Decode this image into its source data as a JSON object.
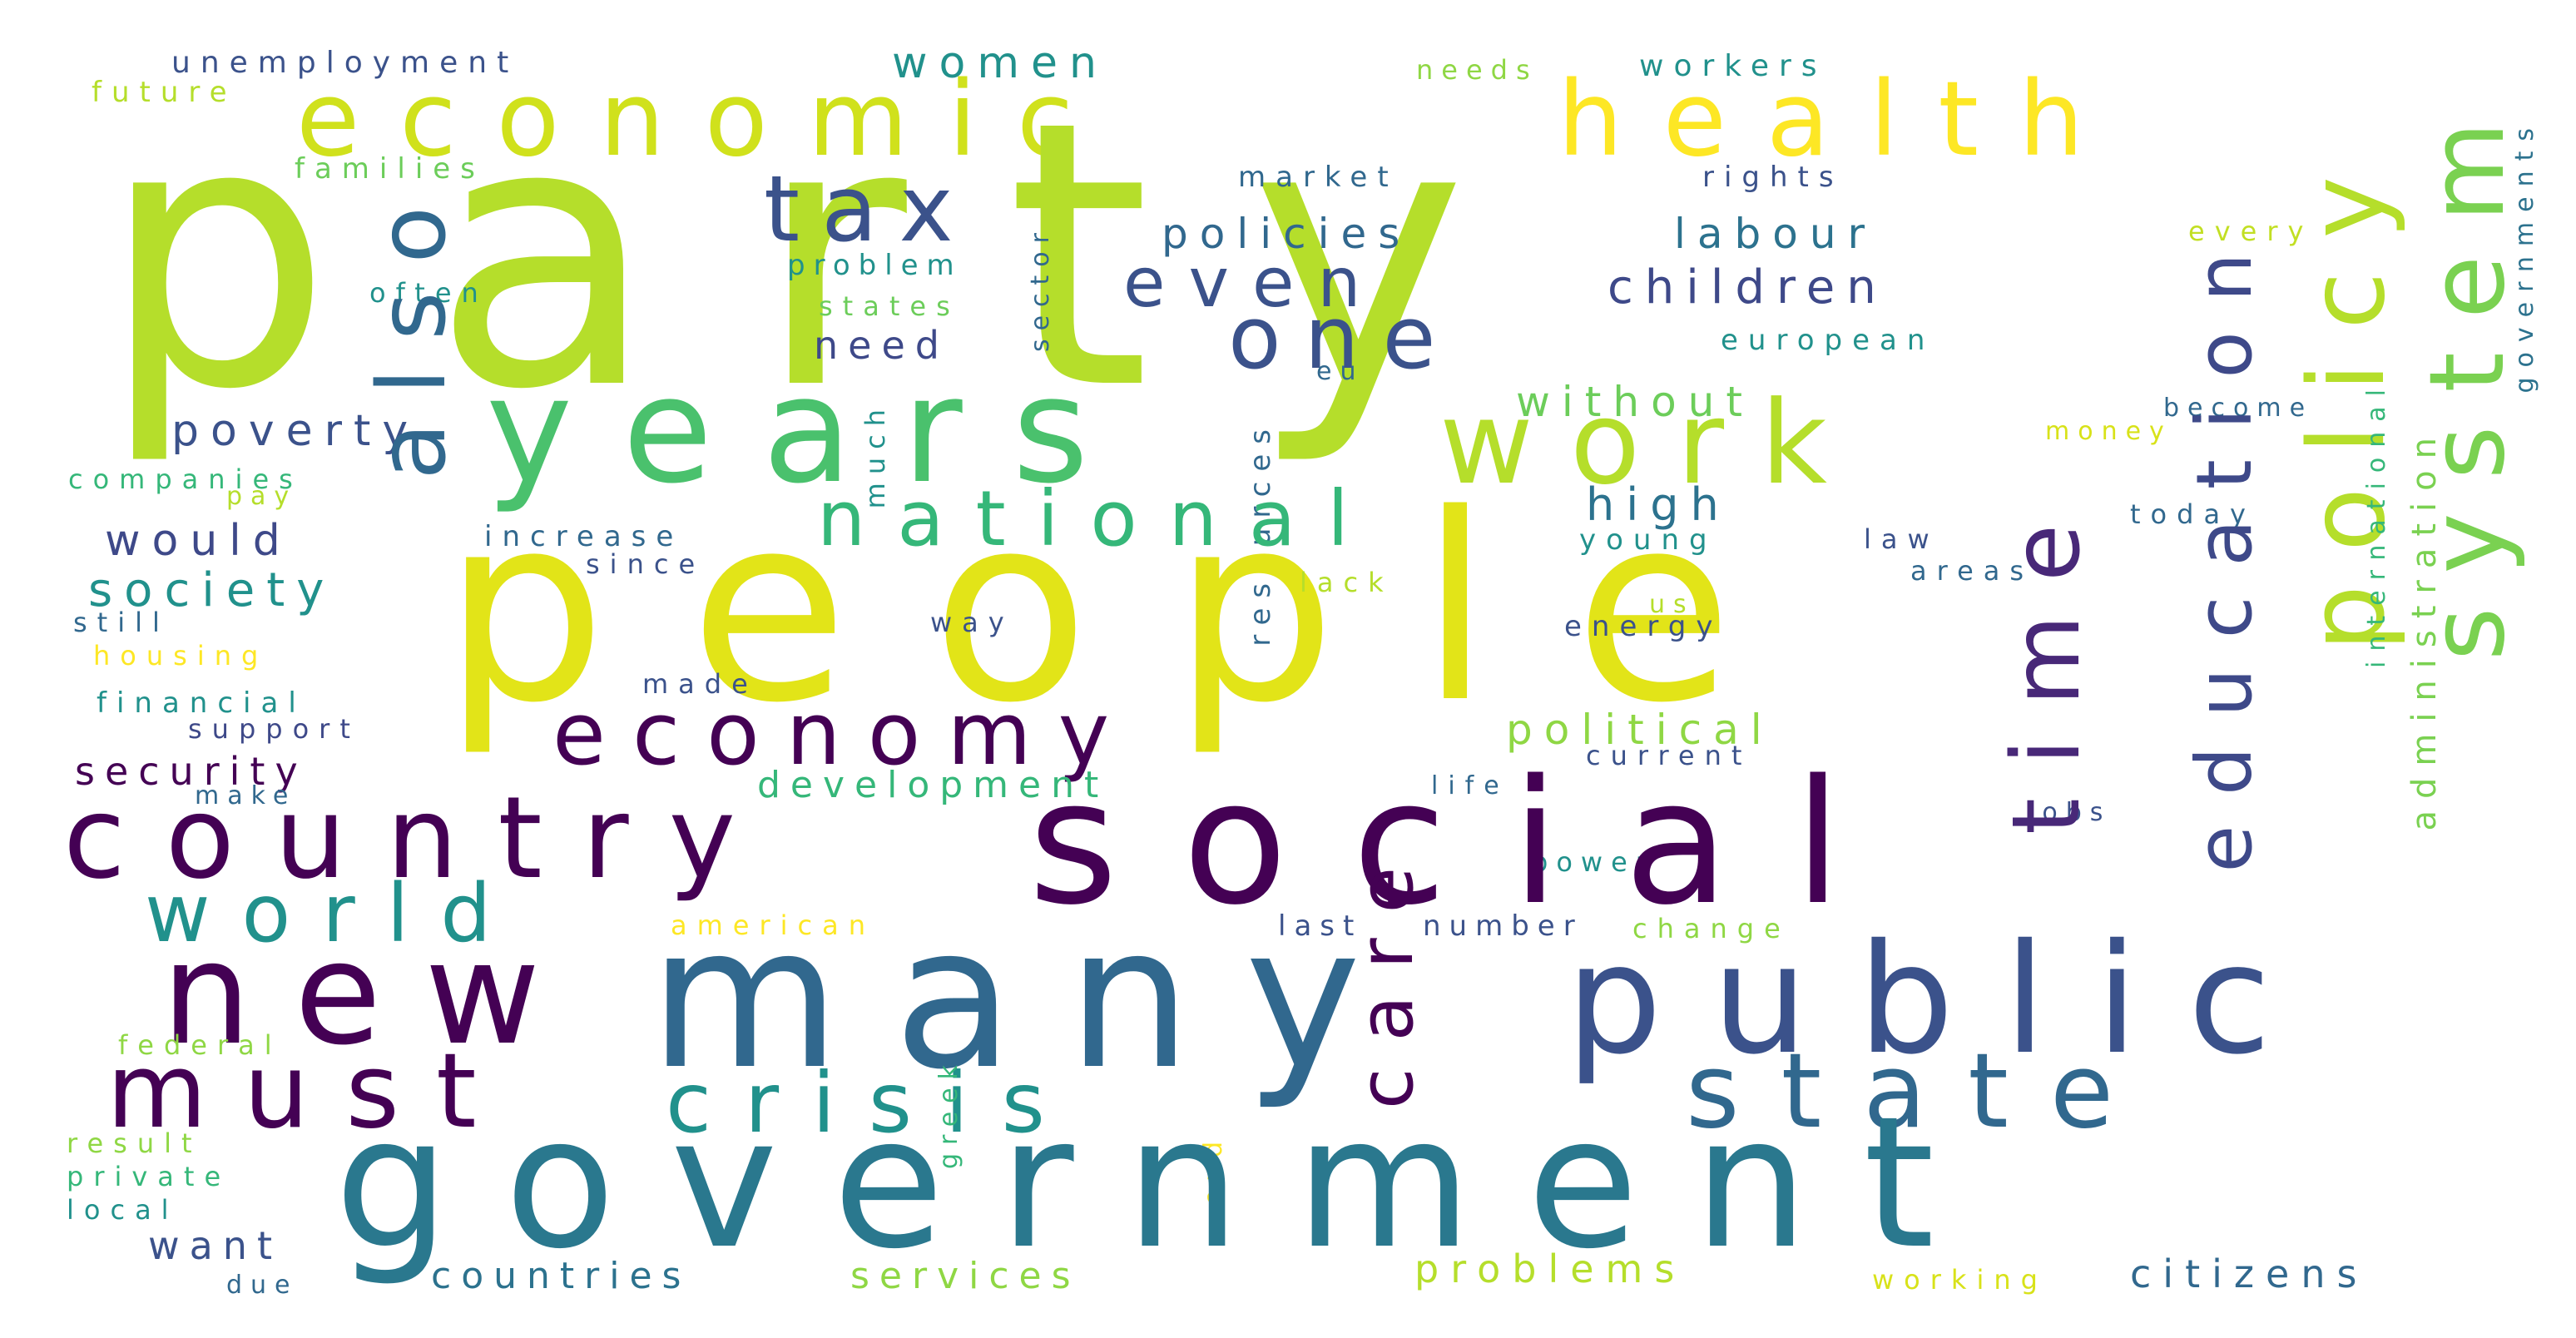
{
  "words": {
    "party": "party",
    "people": "people",
    "economic": "economic",
    "health": "health",
    "years": "years",
    "government": "government",
    "many": "many",
    "social": "social",
    "country": "country",
    "new": "new",
    "public": "public",
    "policy": "policy",
    "system": "system",
    "also": "also",
    "tax": "tax",
    "one": "one",
    "even": "even",
    "work": "work",
    "national": "national",
    "economy": "economy",
    "time": "time",
    "education": "education",
    "world": "world",
    "must": "must",
    "crisis": "crisis",
    "state": "state",
    "care": "care",
    "women": "women",
    "unemployment": "unemployment",
    "future": "future",
    "families": "families",
    "often": "often",
    "needs": "needs",
    "workers": "workers",
    "market": "market",
    "rights": "rights",
    "policies": "policies",
    "labour": "labour",
    "children": "children",
    "problem": "problem",
    "states": "states",
    "need": "need",
    "european": "european",
    "eu": "eu",
    "without": "without",
    "poverty": "poverty",
    "companies": "companies",
    "pay": "pay",
    "much": "much",
    "sector": "sector",
    "resources": "resources",
    "high": "high",
    "would": "would",
    "increase": "increase",
    "since": "since",
    "society": "society",
    "still": "still",
    "housing": "housing",
    "young": "young",
    "law": "law",
    "areas": "areas",
    "lack": "lack",
    "us": "us",
    "energy": "energy",
    "way": "way",
    "made": "made",
    "financial": "financial",
    "support": "support",
    "security": "security",
    "political": "political",
    "development": "development",
    "make": "make",
    "life": "life",
    "current": "current",
    "jobs": "jobs",
    "power": "power",
    "american": "american",
    "last": "last",
    "number": "number",
    "change": "change",
    "federal": "federal",
    "result": "result",
    "private": "private",
    "local": "local",
    "want": "want",
    "due": "due",
    "greek": "greek",
    "end": "end",
    "countries": "countries",
    "services": "services",
    "problems": "problems",
    "working": "working",
    "citizens": "citizens",
    "every": "every",
    "money": "money",
    "become": "become",
    "today": "today",
    "international": "international",
    "administration": "administration",
    "governments": "governments"
  },
  "palette": {
    "background": "#ffffff",
    "dark_purple": "#440154",
    "indigo": "#3b528b",
    "blue": "#31688e",
    "teal": "#21918c",
    "green": "#35b779",
    "lime": "#b5de2b",
    "yellow": "#fde725"
  }
}
